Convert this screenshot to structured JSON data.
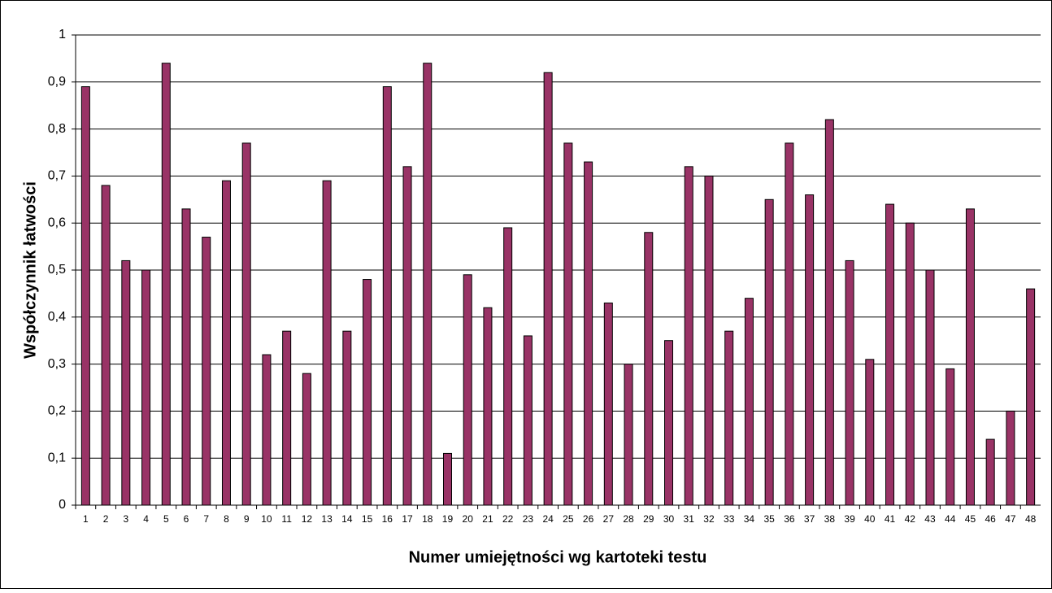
{
  "chart_data": {
    "type": "bar",
    "x_label": "Numer umiejętności wg kartoteki testu",
    "y_label": "Współczynnik łatwości",
    "categories": [
      "1",
      "2",
      "3",
      "4",
      "5",
      "6",
      "7",
      "8",
      "9",
      "10",
      "11",
      "12",
      "13",
      "14",
      "15",
      "16",
      "17",
      "18",
      "19",
      "20",
      "21",
      "22",
      "23",
      "24",
      "25",
      "26",
      "27",
      "28",
      "29",
      "30",
      "31",
      "32",
      "33",
      "34",
      "35",
      "36",
      "37",
      "38",
      "39",
      "40",
      "41",
      "42",
      "43",
      "44",
      "45",
      "46",
      "47",
      "48"
    ],
    "values": [
      0.89,
      0.68,
      0.52,
      0.5,
      0.94,
      0.63,
      0.57,
      0.69,
      0.77,
      0.32,
      0.37,
      0.28,
      0.69,
      0.37,
      0.48,
      0.89,
      0.72,
      0.94,
      0.11,
      0.49,
      0.42,
      0.59,
      0.36,
      0.92,
      0.77,
      0.73,
      0.43,
      0.3,
      0.58,
      0.35,
      0.72,
      0.7,
      0.37,
      0.44,
      0.65,
      0.77,
      0.66,
      0.82,
      0.52,
      0.31,
      0.64,
      0.6,
      0.5,
      0.29,
      0.63,
      0.14,
      0.2,
      0.46
    ],
    "color": "#993366",
    "ylim": [
      0,
      1
    ],
    "yticks": [
      0,
      {
        "value": 0.1,
        "label": "0,1"
      },
      {
        "value": 0.2,
        "label": "0,2"
      },
      {
        "value": 0.3,
        "label": "0,3"
      },
      {
        "value": 0.4,
        "label": "0,4"
      },
      {
        "value": 0.5,
        "label": "0,5"
      },
      {
        "value": 0.6,
        "label": "0,6"
      },
      {
        "value": 0.7,
        "label": "0,7"
      },
      {
        "value": 0.8,
        "label": "0,8"
      },
      {
        "value": 0.9,
        "label": "0,9"
      },
      1
    ],
    "grid": true
  }
}
